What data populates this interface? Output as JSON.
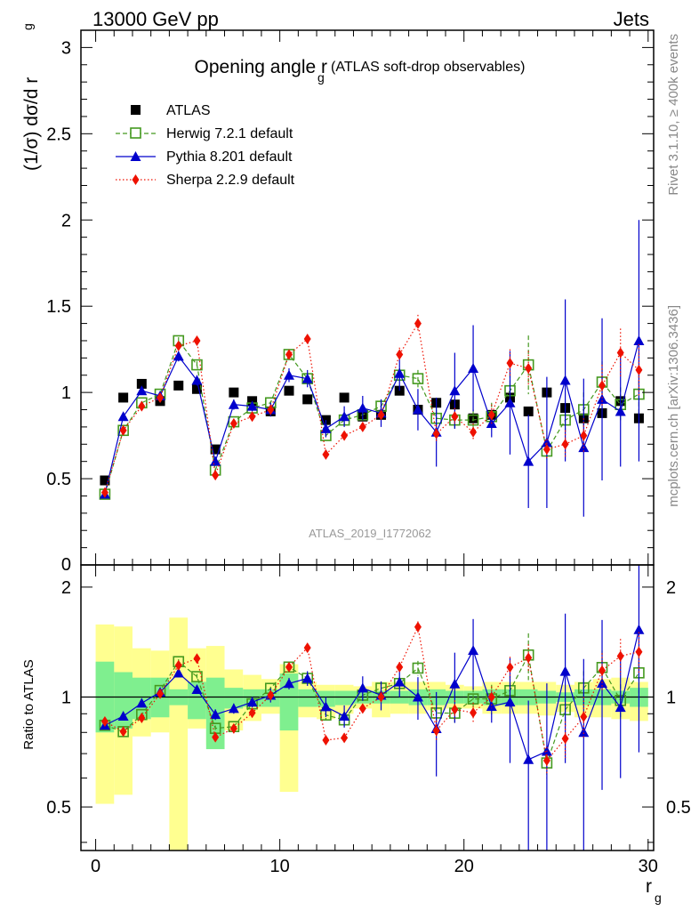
{
  "header": {
    "left": "13000 GeV pp",
    "right": "Jets"
  },
  "chart_data": {
    "type": "line",
    "title_main": "Opening angle r",
    "title_sub": "g",
    "title_note": "(ATLAS soft-drop observables)",
    "analysis_id": "ATLAS_2019_I1772062",
    "side_label_top": "Rivet 3.1.10, ≥ 400k events",
    "side_label_bottom": "mcplots.cern.ch [arXiv:1306.3436]",
    "xlabel_main": "r",
    "xlabel_sub": "g",
    "ylabel_main": "(1/σ) dσ/d r",
    "ylabel_sub": "g",
    "ratio_ylabel": "Ratio to ATLAS",
    "xlim": [
      -0.8,
      30.3
    ],
    "ylim_main": [
      0,
      3.1
    ],
    "ylim_ratio": [
      0.38,
      2.3
    ],
    "ratio_log_scale": true,
    "xticks": [
      "0",
      "10",
      "20",
      "30"
    ],
    "yticks_main": [
      "0.5",
      "1",
      "1.5",
      "2",
      "2.5",
      "3"
    ],
    "yticks_main_partial": "0",
    "yticks_ratio": [
      "0.5",
      "1",
      "2"
    ],
    "x": [
      0.5,
      1.5,
      2.5,
      3.5,
      4.5,
      5.5,
      6.5,
      7.5,
      8.5,
      9.5,
      10.5,
      11.5,
      12.5,
      13.5,
      14.5,
      15.5,
      16.5,
      17.5,
      18.5,
      19.5,
      20.5,
      21.5,
      22.5,
      23.5,
      24.5,
      25.5,
      26.5,
      27.5,
      28.5,
      29.5
    ],
    "series": [
      {
        "name": "ATLAS",
        "color": "#000000",
        "marker": "square-filled",
        "values": [
          0.49,
          0.97,
          1.05,
          0.95,
          1.04,
          1.02,
          0.67,
          1.0,
          0.95,
          0.89,
          1.01,
          0.96,
          0.84,
          0.97,
          0.86,
          0.87,
          1.01,
          0.9,
          0.94,
          0.93,
          0.85,
          0.87,
          0.97,
          0.89,
          1.0,
          0.91,
          0.85,
          0.88,
          0.95,
          0.85
        ]
      },
      {
        "name": "Herwig 7.2.1 default",
        "color": "#44991f",
        "marker": "square-open",
        "line": "dashed",
        "values": [
          0.41,
          0.78,
          0.94,
          0.99,
          1.3,
          1.16,
          0.55,
          0.83,
          0.91,
          0.94,
          1.22,
          1.08,
          0.75,
          0.84,
          0.87,
          0.92,
          1.1,
          1.08,
          0.85,
          0.84,
          0.84,
          0.86,
          1.01,
          1.16,
          0.66,
          0.84,
          0.9,
          1.06,
          0.93,
          0.99
        ],
        "errors": [
          0.01,
          0.01,
          0.01,
          0.01,
          0.02,
          0.02,
          0.01,
          0.01,
          0.01,
          0.01,
          0.02,
          0.03,
          0.02,
          0.03,
          0.03,
          0.04,
          0.04,
          0.05,
          0.05,
          0.05,
          0.06,
          0.08,
          0.1,
          0.17,
          0.06,
          0.08,
          0.1,
          0.12,
          0.1,
          0.12
        ]
      },
      {
        "name": "Pythia 8.201 default",
        "color": "#0000cc",
        "marker": "triangle",
        "line": "solid",
        "values": [
          0.41,
          0.86,
          1.01,
          0.98,
          1.21,
          1.07,
          0.6,
          0.93,
          0.92,
          0.9,
          1.1,
          1.08,
          0.79,
          0.86,
          0.91,
          0.88,
          1.11,
          0.9,
          0.77,
          1.01,
          1.14,
          0.82,
          0.94,
          0.6,
          0.71,
          1.07,
          0.68,
          0.96,
          0.89,
          1.3
        ],
        "errors": [
          0.01,
          0.02,
          0.02,
          0.02,
          0.03,
          0.03,
          0.02,
          0.03,
          0.03,
          0.04,
          0.04,
          0.05,
          0.05,
          0.06,
          0.07,
          0.08,
          0.1,
          0.12,
          0.2,
          0.22,
          0.25,
          0.08,
          0.3,
          0.27,
          0.38,
          0.47,
          0.4,
          0.47,
          0.32,
          0.7
        ]
      },
      {
        "name": "Sherpa 2.2.9 default",
        "color": "#ee1100",
        "marker": "diamond",
        "line": "dotted",
        "values": [
          0.42,
          0.78,
          0.92,
          0.97,
          1.27,
          1.3,
          0.52,
          0.82,
          0.86,
          0.9,
          1.22,
          1.31,
          0.64,
          0.75,
          0.8,
          0.87,
          1.22,
          1.4,
          0.76,
          0.86,
          0.77,
          0.87,
          1.17,
          1.14,
          0.67,
          0.7,
          0.75,
          1.04,
          1.23,
          1.13
        ],
        "errors": [
          0.01,
          0.01,
          0.01,
          0.01,
          0.02,
          0.02,
          0.01,
          0.01,
          0.01,
          0.01,
          0.02,
          0.02,
          0.02,
          0.02,
          0.02,
          0.03,
          0.04,
          0.05,
          0.05,
          0.05,
          0.05,
          0.06,
          0.08,
          0.1,
          0.06,
          0.08,
          0.1,
          0.12,
          0.14,
          0.15
        ]
      }
    ],
    "ratio_band": {
      "stat_color": "#7fef8f",
      "total_color": "#ffff90",
      "stat_lo": [
        0.8,
        0.82,
        0.87,
        0.88,
        0.95,
        0.87,
        0.72,
        0.93,
        0.94,
        0.94,
        0.81,
        0.94,
        0.94,
        0.95,
        0.96,
        0.96,
        0.96,
        0.95,
        0.95,
        0.96,
        0.96,
        0.95,
        0.95,
        0.95,
        0.96,
        0.97,
        0.95,
        0.95,
        0.96,
        0.94
      ],
      "stat_hi": [
        1.25,
        1.17,
        1.13,
        1.13,
        1.05,
        1.1,
        1.13,
        1.06,
        1.05,
        1.05,
        1.16,
        1.05,
        1.04,
        1.04,
        1.04,
        1.04,
        1.04,
        1.05,
        1.05,
        1.04,
        1.04,
        1.05,
        1.05,
        1.05,
        1.04,
        1.03,
        1.05,
        1.05,
        1.04,
        1.06
      ],
      "total_lo": [
        0.51,
        0.54,
        0.78,
        0.8,
        0.38,
        0.82,
        0.74,
        0.81,
        0.86,
        0.9,
        0.55,
        0.88,
        0.87,
        0.9,
        0.93,
        0.88,
        0.9,
        0.9,
        0.92,
        0.93,
        0.93,
        0.9,
        0.9,
        0.9,
        0.89,
        0.91,
        0.88,
        0.88,
        0.87,
        0.86
      ],
      "total_hi": [
        1.58,
        1.56,
        1.36,
        1.34,
        1.65,
        1.36,
        1.38,
        1.19,
        1.15,
        1.12,
        1.23,
        1.1,
        1.08,
        1.08,
        1.07,
        1.1,
        1.1,
        1.1,
        1.1,
        1.08,
        1.07,
        1.1,
        1.1,
        1.1,
        1.1,
        1.08,
        1.1,
        1.12,
        1.13,
        1.1
      ]
    }
  }
}
